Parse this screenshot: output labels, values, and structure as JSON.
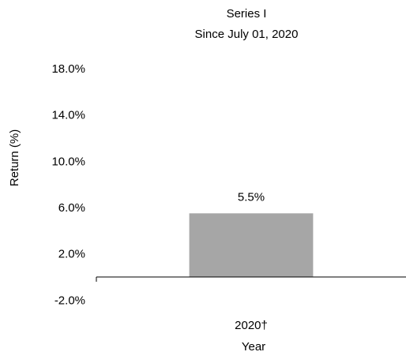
{
  "chart_data": {
    "type": "bar",
    "title": "Series I",
    "subtitle": "Since July 01, 2020",
    "xlabel": "Year",
    "ylabel": "Return (%)",
    "categories": [
      "2020†"
    ],
    "values": [
      5.5
    ],
    "data_labels": [
      "5.5%"
    ],
    "yticks": [
      -2.0,
      2.0,
      6.0,
      10.0,
      14.0,
      18.0
    ],
    "ytick_labels": [
      "-2.0%",
      "2.0%",
      "6.0%",
      "10.0%",
      "14.0%",
      "18.0%"
    ],
    "ylim": [
      -4,
      20
    ],
    "grid": false,
    "legend": "none",
    "colors": {
      "bar": "#a6a6a6",
      "axis": "#000000",
      "text": "#000000"
    }
  }
}
